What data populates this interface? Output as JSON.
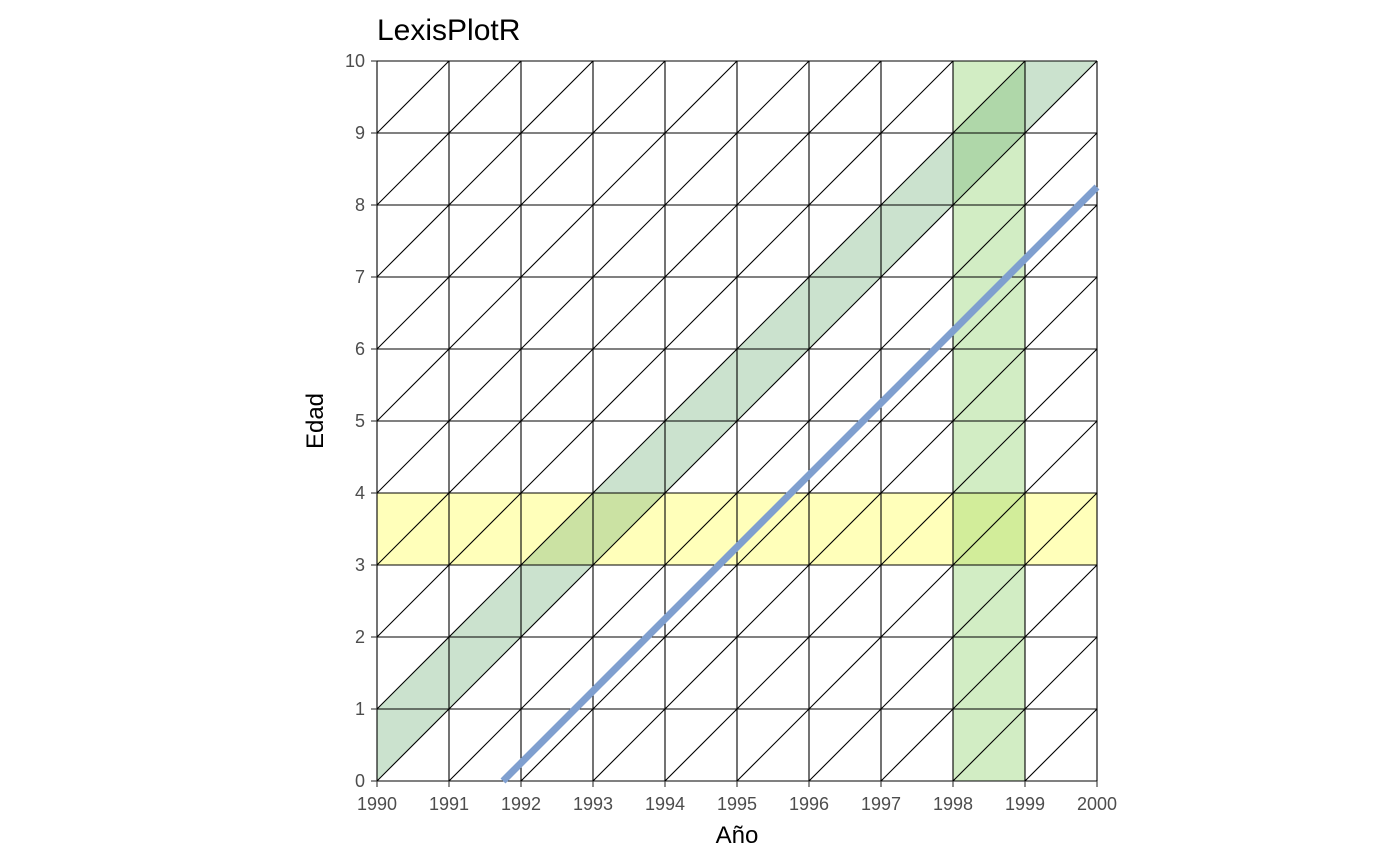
{
  "chart_data": {
    "type": "lexis",
    "title": "LexisPlotR",
    "xlabel": "Año",
    "ylabel": "Edad",
    "xlim": [
      1990,
      2000
    ],
    "ylim": [
      0,
      10
    ],
    "x_ticks": [
      "1990",
      "1991",
      "1992",
      "1993",
      "1994",
      "1995",
      "1996",
      "1997",
      "1998",
      "1999",
      "2000"
    ],
    "y_ticks": [
      "0",
      "1",
      "2",
      "3",
      "4",
      "5",
      "6",
      "7",
      "8",
      "9",
      "10"
    ],
    "grid": true,
    "highlights": {
      "age": {
        "from": 3,
        "to": 4,
        "color": "#ffff66"
      },
      "year": {
        "from": 1998,
        "to": 1999,
        "color": "#8fd16b"
      },
      "cohort": {
        "birth_year": 1990,
        "color": "#76b27f"
      }
    },
    "lifeline": {
      "entry": [
        1991.75,
        0
      ],
      "exit": [
        2000,
        8.25
      ],
      "color": "#7f9fcf"
    }
  }
}
